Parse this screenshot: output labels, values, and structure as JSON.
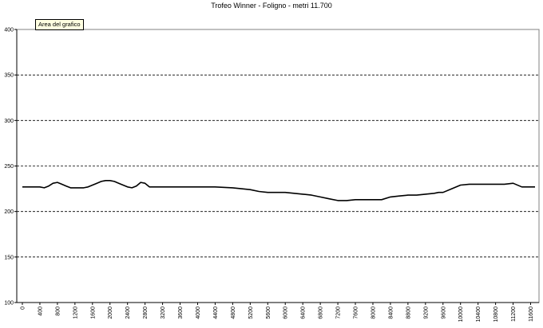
{
  "tooltip": "Area del grafico",
  "chart_data": {
    "type": "line",
    "title": "Trofeo Winner - Foligno - metri 11.700",
    "xlabel": "",
    "ylabel": "",
    "ylim": [
      100,
      400
    ],
    "yticks": [
      100,
      150,
      200,
      250,
      300,
      350,
      400
    ],
    "grid": "horizontal-dashed",
    "xlim": [
      0,
      11700
    ],
    "xticks": [
      0,
      400,
      800,
      1200,
      1600,
      2000,
      2400,
      2800,
      3200,
      3600,
      4000,
      4400,
      4800,
      5200,
      5600,
      6000,
      6400,
      6800,
      7200,
      7600,
      8000,
      8400,
      8800,
      9200,
      9600,
      10000,
      10400,
      10800,
      11200,
      11600
    ],
    "x": [
      0,
      200,
      400,
      500,
      600,
      700,
      800,
      900,
      1000,
      1100,
      1200,
      1300,
      1400,
      1500,
      1600,
      1700,
      1800,
      1900,
      2000,
      2100,
      2200,
      2300,
      2400,
      2500,
      2600,
      2700,
      2800,
      2900,
      3000,
      3100,
      3200,
      3600,
      4000,
      4400,
      4800,
      5000,
      5200,
      5400,
      5600,
      5800,
      6000,
      6200,
      6400,
      6600,
      6800,
      7000,
      7200,
      7400,
      7600,
      7800,
      8000,
      8200,
      8400,
      8600,
      8800,
      9000,
      9200,
      9400,
      9500,
      9600,
      9800,
      10000,
      10200,
      10400,
      10600,
      10800,
      11000,
      11200,
      11400,
      11700
    ],
    "series": [
      {
        "values": [
          227,
          227,
          227,
          226,
          228,
          231,
          232,
          230,
          228,
          226,
          226,
          226,
          226,
          227,
          229,
          231,
          233,
          234,
          234,
          233,
          231,
          229,
          227,
          226,
          228,
          232,
          231,
          227,
          227,
          227,
          227,
          227,
          227,
          227,
          226,
          225,
          224,
          222,
          221,
          221,
          221,
          220,
          219,
          218,
          216,
          214,
          212,
          212,
          213,
          213,
          213,
          213,
          216,
          217,
          218,
          218,
          219,
          220,
          221,
          221,
          225,
          229,
          230,
          230,
          230,
          230,
          230,
          231,
          227,
          227
        ],
        "color": "#000000"
      }
    ]
  }
}
